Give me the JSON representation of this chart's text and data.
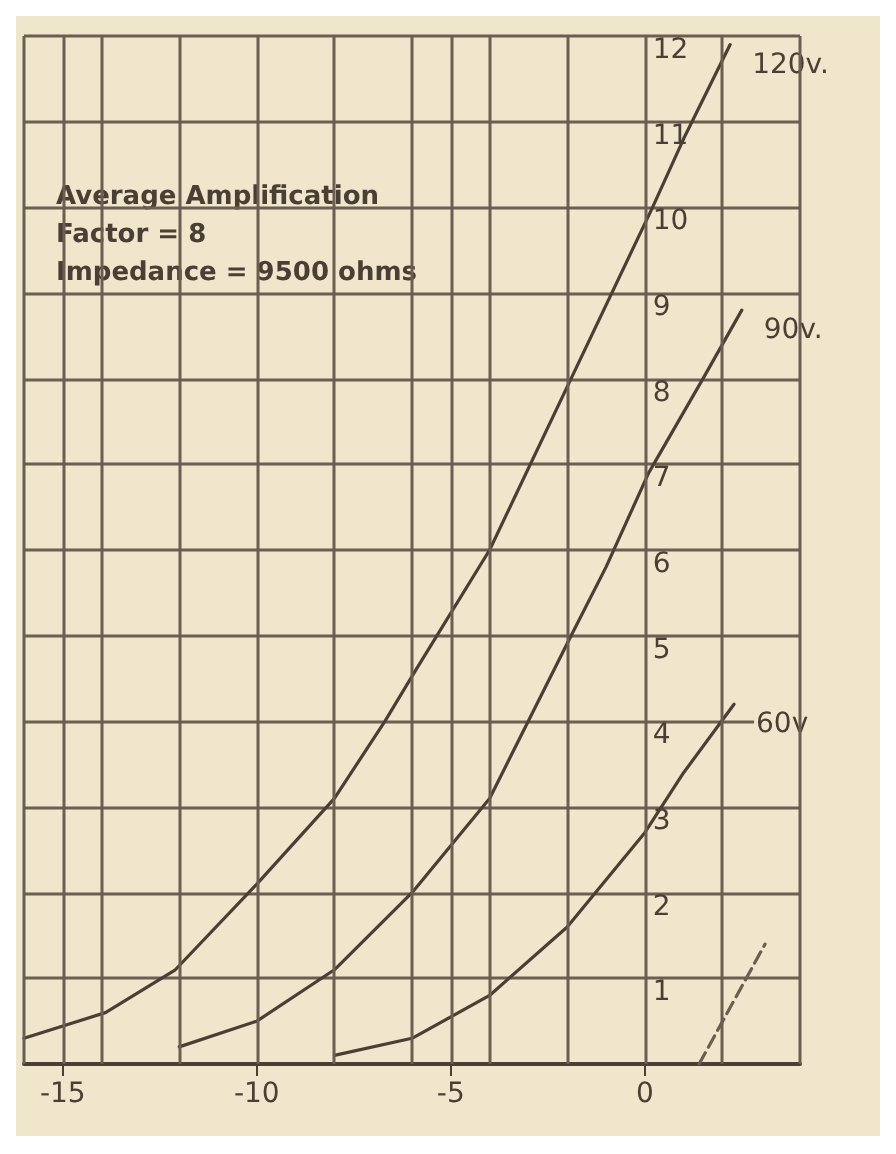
{
  "chart_data": {
    "type": "line",
    "annotations": [
      "Average Amplification",
      "Factor = 8",
      "Impedance = 9500 ohms"
    ],
    "series": [
      {
        "name": "120v.",
        "color": "#4a3f35",
        "x": [
          -16.0,
          -13.9,
          -12.1,
          -10.0,
          -8.0,
          -6.7,
          -5.9,
          -4.0,
          -1.9,
          0.2,
          1.0,
          2.2
        ],
        "values": [
          0.3,
          0.6,
          1.1,
          2.1,
          3.1,
          4.0,
          4.6,
          6.0,
          8.0,
          10.0,
          10.8,
          11.9
        ]
      },
      {
        "name": "90v.",
        "color": "#4a3f35",
        "x": [
          -12.0,
          -10.0,
          -8.0,
          -6.0,
          -4.0,
          -1.9,
          -1.0,
          0.1,
          1.5,
          2.5
        ],
        "values": [
          0.2,
          0.5,
          1.1,
          2.0,
          3.1,
          5.0,
          5.8,
          6.9,
          8.0,
          8.8
        ]
      },
      {
        "name": "60v",
        "color": "#4a3f35",
        "x": [
          -8.0,
          -6.0,
          -4.0,
          -2.0,
          0.0,
          1.0,
          2.3
        ],
        "values": [
          0.1,
          0.3,
          0.8,
          1.6,
          2.7,
          3.4,
          4.2
        ]
      },
      {
        "color": "#6b5f52",
        "line_style": "dashed",
        "x": [
          1.4,
          3.1
        ],
        "values": [
          0.0,
          1.4
        ]
      }
    ],
    "xlim": [
      -16,
      4
    ],
    "xticks": [
      {
        "value": -16,
        "label": null
      },
      -15,
      {
        "value": -14,
        "label": null
      },
      {
        "value": -12,
        "label": null
      },
      -10,
      {
        "value": -8,
        "label": null
      },
      {
        "value": -6,
        "label": null
      },
      -5,
      {
        "value": -4,
        "label": null
      },
      {
        "value": -2,
        "label": null
      },
      0,
      {
        "value": 2,
        "label": null
      },
      {
        "value": 4,
        "label": null
      }
    ],
    "ylim": [
      0,
      12
    ],
    "yticks": [
      {
        "value": 0,
        "label": null
      },
      1,
      2,
      3,
      4,
      5,
      6,
      7,
      8,
      9,
      10,
      11,
      12
    ],
    "grid": true,
    "legend": false,
    "line_style": "solid",
    "marker": "none"
  }
}
